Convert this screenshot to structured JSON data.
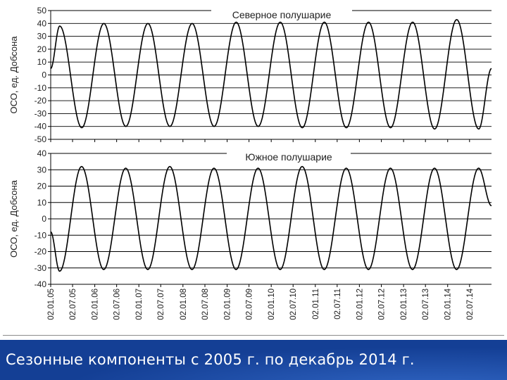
{
  "caption": "Сезонные компоненты с 2005 г. по декабрь 2014 г.",
  "colors": {
    "caption_background": "#143f95",
    "caption_text": "#ffffff",
    "curve": "#000000",
    "grid": "#000000"
  },
  "x_tick_labels": [
    "02.01.05",
    "02.07.05",
    "02.01.06",
    "02.07.06",
    "02.01.07",
    "02.07.07",
    "02.01.08",
    "02.07.08",
    "02.01.09",
    "02.07.09",
    "02.01.10",
    "02.07.10",
    "02.01.11",
    "02.07.11",
    "02.01.12",
    "02.07.12",
    "02.01.13",
    "02.07.13",
    "02.01.14",
    "02.07.14"
  ],
  "chart_data": [
    {
      "type": "line",
      "title": "Северное полушарие",
      "ylabel": "ОСО, ед. Добсона",
      "xlabel": "",
      "ylim": [
        -50,
        50
      ],
      "yticks": [
        50,
        40,
        30,
        20,
        10,
        0,
        -10,
        -20,
        -30,
        -40,
        -50
      ],
      "grid": true,
      "x_start": "02.01.05",
      "x_end": "31.12.14",
      "period_years": 1,
      "series": [
        {
          "points": [
            [
              "02.01.05",
              5
            ],
            [
              "18.03.05",
              38
            ],
            [
              "16.09.05",
              -41
            ],
            [
              "18.03.06",
              40
            ],
            [
              "16.09.06",
              -40
            ],
            [
              "18.03.07",
              40
            ],
            [
              "16.09.07",
              -40
            ],
            [
              "18.03.08",
              40
            ],
            [
              "16.09.08",
              -40
            ],
            [
              "18.03.09",
              41
            ],
            [
              "16.09.09",
              -40
            ],
            [
              "18.03.10",
              41
            ],
            [
              "16.09.10",
              -41
            ],
            [
              "18.03.11",
              41
            ],
            [
              "16.09.11",
              -41
            ],
            [
              "18.03.12",
              41
            ],
            [
              "16.09.12",
              -41
            ],
            [
              "18.03.13",
              41
            ],
            [
              "16.09.13",
              -42
            ],
            [
              "18.03.14",
              43
            ],
            [
              "16.09.14",
              -42
            ],
            [
              "31.12.14",
              5
            ]
          ]
        }
      ]
    },
    {
      "type": "line",
      "title": "Южное полушарие",
      "ylabel": "ОСО, ед. Добсона",
      "xlabel": "",
      "ylim": [
        -40,
        40
      ],
      "yticks": [
        40,
        30,
        20,
        10,
        0,
        -10,
        -20,
        -30,
        -40
      ],
      "grid": true,
      "x_start": "02.01.05",
      "x_end": "31.12.14",
      "period_years": 1,
      "series": [
        {
          "points": [
            [
              "02.01.05",
              -8
            ],
            [
              "17.03.05",
              -32
            ],
            [
              "15.09.05",
              32
            ],
            [
              "17.03.06",
              -31
            ],
            [
              "15.09.06",
              31
            ],
            [
              "17.03.07",
              -31
            ],
            [
              "15.09.07",
              32
            ],
            [
              "17.03.08",
              -31
            ],
            [
              "15.09.08",
              31
            ],
            [
              "17.03.09",
              -31
            ],
            [
              "15.09.09",
              31
            ],
            [
              "17.03.10",
              -31
            ],
            [
              "15.09.10",
              32
            ],
            [
              "17.03.11",
              -31
            ],
            [
              "15.09.11",
              31
            ],
            [
              "17.03.12",
              -31
            ],
            [
              "15.09.12",
              31
            ],
            [
              "17.03.13",
              -31
            ],
            [
              "15.09.13",
              31
            ],
            [
              "17.03.14",
              -31
            ],
            [
              "15.09.14",
              31
            ],
            [
              "31.12.14",
              8
            ]
          ]
        }
      ]
    }
  ]
}
